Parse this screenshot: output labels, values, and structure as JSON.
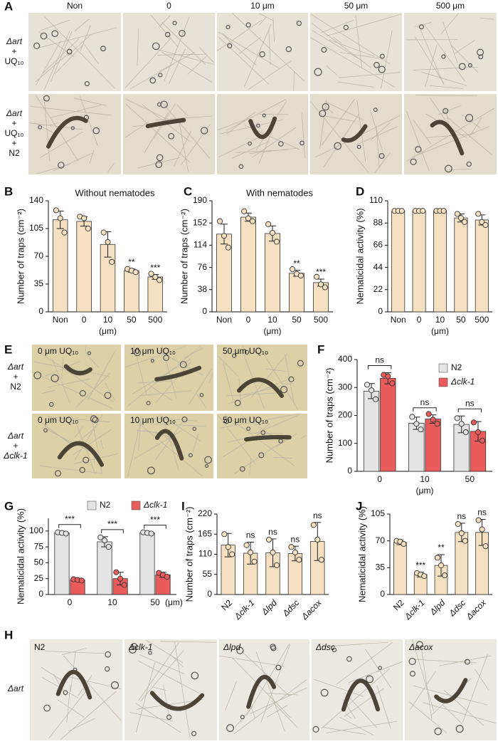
{
  "panel_labels": [
    "A",
    "B",
    "C",
    "D",
    "E",
    "F",
    "G",
    "H",
    "I",
    "J"
  ],
  "figure_a": {
    "columns": [
      "Non",
      "0",
      "10 μm",
      "50 μm",
      "500 μm"
    ],
    "rows": [
      [
        "Δart",
        "+",
        "UQ₁₀"
      ],
      [
        "Δart",
        "+",
        "UQ₁₀",
        "+",
        "N2"
      ]
    ]
  },
  "figure_e": {
    "captions": [
      [
        "0 μm UQ₁₀",
        "10 μm UQ₁₀",
        "50 μm UQ₁₀"
      ],
      [
        "0 μm UQ₁₀",
        "10 μm UQ₁₀",
        "50 μm UQ₁₀"
      ]
    ],
    "rows": [
      [
        "Δart",
        "+",
        "N2"
      ],
      [
        "Δart",
        "+",
        "Δclk-1"
      ]
    ]
  },
  "figure_h": {
    "captions": [
      "N2",
      "Δclk-1",
      "Δlpd",
      "Δdsc",
      "Δacox"
    ],
    "rows": [
      [
        "Δart"
      ]
    ]
  },
  "chart_data": [
    {
      "type": "bar",
      "title": "Without nematodes",
      "ylabel": "Number of traps (cm⁻²)",
      "xlabel": "(μm)",
      "categories": [
        "Non",
        "0",
        "10",
        "50",
        "500"
      ],
      "values": [
        116,
        114,
        85,
        52,
        44
      ],
      "errors": [
        11,
        6,
        16,
        2,
        3
      ],
      "points": [
        [
          128,
          118,
          100
        ],
        [
          120,
          118,
          105
        ],
        [
          100,
          88,
          63
        ],
        [
          54,
          52,
          50
        ],
        [
          48,
          44,
          40
        ]
      ],
      "significance": [
        null,
        null,
        null,
        "**",
        "***"
      ],
      "color": "#f6e0c2",
      "ylim": [
        0,
        140
      ],
      "yticks": [
        0,
        35,
        70,
        105,
        140
      ]
    },
    {
      "type": "bar",
      "title": "With nematodes",
      "ylabel": "Number of traps (cm⁻²)",
      "xlabel": "(μm)",
      "categories": [
        "Non",
        "0",
        "10",
        "50",
        "500"
      ],
      "values": [
        133,
        162,
        134,
        66,
        50
      ],
      "errors": [
        17,
        7,
        13,
        5,
        6
      ],
      "points": [
        [
          155,
          130,
          110
        ],
        [
          172,
          160,
          155
        ],
        [
          150,
          135,
          120
        ],
        [
          73,
          65,
          62
        ],
        [
          60,
          47,
          42
        ]
      ],
      "significance": [
        null,
        null,
        null,
        "**",
        "***"
      ],
      "color": "#f6e0c2",
      "ylim": [
        0,
        190
      ],
      "yticks": [
        0,
        38,
        76,
        114,
        152,
        190
      ]
    },
    {
      "type": "bar",
      "ylabel": "Nematicidal activity (%)",
      "xlabel": "(μm)",
      "categories": [
        "Non",
        "0",
        "10",
        "50",
        "500"
      ],
      "values": [
        100,
        100,
        100,
        93,
        91
      ],
      "errors": [
        0,
        0,
        0,
        4,
        5
      ],
      "points": [
        [
          100,
          100,
          100
        ],
        [
          100,
          100,
          100
        ],
        [
          100,
          100,
          100
        ],
        [
          97,
          93,
          89
        ],
        [
          97,
          89,
          86
        ]
      ],
      "color": "#f6e0c2",
      "ylim": [
        0,
        110
      ],
      "yticks": [
        0,
        22,
        44,
        66,
        88,
        110
      ]
    },
    {
      "type": "bar",
      "ylabel": "Number of traps (cm⁻²)",
      "xlabel": "(μm)",
      "categories": [
        "0",
        "10",
        "50"
      ],
      "series": [
        {
          "name": "N2",
          "color": "#e4e4e4",
          "values": [
            287,
            172,
            168
          ],
          "errors": [
            27,
            22,
            30
          ],
          "points": [
            [
              310,
              290,
              258
            ],
            [
              195,
              170,
              150
            ],
            [
              190,
              170,
              140
            ]
          ]
        },
        {
          "name": "Δclk-1",
          "color": "#ea5b5b",
          "values": [
            333,
            187,
            143
          ],
          "errors": [
            20,
            15,
            35
          ],
          "points": [
            [
              345,
              340,
              315
            ],
            [
              205,
              185,
              170
            ],
            [
              175,
              140,
              110
            ]
          ]
        }
      ],
      "significance": [
        "ns",
        "ns",
        "ns"
      ],
      "legend": "upper right",
      "ylim": [
        0,
        400
      ],
      "yticks": [
        0,
        100,
        200,
        300,
        400
      ]
    },
    {
      "type": "bar",
      "ylabel": "Nematicidal activity (%)",
      "xlabel": "(μm)",
      "categories": [
        "0",
        "10",
        "50"
      ],
      "series": [
        {
          "name": "N2",
          "color": "#e4e4e4",
          "values": [
            97,
            83,
            97
          ],
          "errors": [
            2,
            8,
            1
          ],
          "points": [
            [
              98,
              97,
              96
            ],
            [
              90,
              85,
              75
            ],
            [
              98,
              97,
              96
            ]
          ]
        },
        {
          "name": "Δclk-1",
          "color": "#ea5b5b",
          "values": [
            23,
            25,
            31
          ],
          "errors": [
            1,
            10,
            4
          ],
          "points": [
            [
              24,
              23,
              22
            ],
            [
              35,
              25,
              15
            ],
            [
              34,
              31,
              28
            ]
          ]
        }
      ],
      "significance": [
        "***",
        "***",
        "***"
      ],
      "legend": "top",
      "ylim": [
        0,
        120
      ],
      "yticks": [
        0,
        25,
        50,
        75,
        100
      ]
    },
    {
      "type": "bar",
      "ylabel": "Number of traps (cm⁻²)",
      "categories": [
        "N2",
        "Δclk-1",
        "Δlpd",
        "Δdsc",
        "Δacox"
      ],
      "values": [
        135,
        113,
        114,
        112,
        145
      ],
      "errors": [
        32,
        30,
        38,
        20,
        52
      ],
      "points": [
        [
          165,
          130,
          110
        ],
        [
          135,
          115,
          90
        ],
        [
          150,
          115,
          80
        ],
        [
          130,
          115,
          95
        ],
        [
          190,
          150,
          95
        ]
      ],
      "significance": [
        null,
        "ns",
        "ns",
        "ns",
        "ns"
      ],
      "color": "#f6e0c2",
      "ylim": [
        0,
        220
      ],
      "yticks": [
        0,
        55,
        110,
        165,
        220
      ]
    },
    {
      "type": "bar",
      "ylabel": "Nematicidal activity (%)",
      "categories": [
        "N2",
        "Δclk-1",
        "Δlpd",
        "Δdsc",
        "Δacox"
      ],
      "values": [
        68,
        26,
        38,
        81,
        81
      ],
      "errors": [
        3,
        3,
        14,
        12,
        17
      ],
      "points": [
        [
          70,
          69,
          66
        ],
        [
          28,
          26,
          24
        ],
        [
          48,
          38,
          25
        ],
        [
          92,
          80,
          70
        ],
        [
          97,
          85,
          63
        ]
      ],
      "significance": [
        null,
        "***",
        "**",
        "ns",
        "ns"
      ],
      "color": "#f6e0c2",
      "ylim": [
        0,
        105
      ],
      "yticks": [
        0,
        35,
        70,
        105
      ]
    }
  ]
}
